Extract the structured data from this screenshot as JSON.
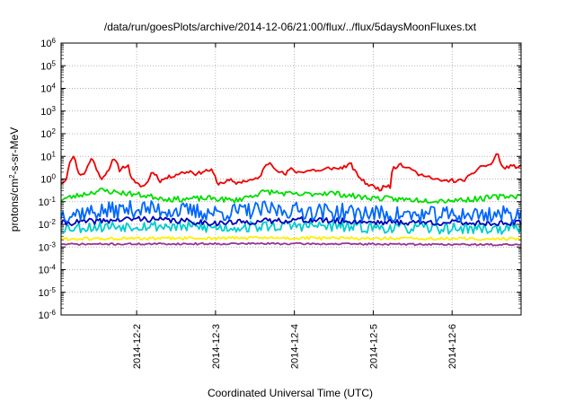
{
  "chart_data": {
    "type": "line",
    "title": "/data/run/goesPlots/archive/2014-12-06/21:00/flux/../flux/5daysMoonFluxes.txt",
    "xlabel": "Coordinated Universal Time (UTC)",
    "ylabel": "protons/cm2-s-sr-MeV",
    "ylabel_parts": {
      "pre": "protons/cm",
      "sup": "2",
      "post": "-s-sr-MeV"
    },
    "y_scale": "log",
    "ylim_exp": [
      -6,
      6
    ],
    "y_ticks": [
      {
        "base": "10",
        "exp": "-6"
      },
      {
        "base": "10",
        "exp": "-5"
      },
      {
        "base": "10",
        "exp": "-4"
      },
      {
        "base": "10",
        "exp": "-3"
      },
      {
        "base": "10",
        "exp": "-2"
      },
      {
        "base": "10",
        "exp": "-1"
      },
      {
        "base": "10",
        "exp": "0"
      },
      {
        "base": "10",
        "exp": "1"
      },
      {
        "base": "10",
        "exp": "2"
      },
      {
        "base": "10",
        "exp": "3"
      },
      {
        "base": "10",
        "exp": "4"
      },
      {
        "base": "10",
        "exp": "5"
      },
      {
        "base": "10",
        "exp": "6"
      }
    ],
    "x_domain": [
      "2014-12-01 01:00",
      "2014-12-06 21:00"
    ],
    "x_tick_labels": [
      "2014-12-2",
      "2014-12-3",
      "2014-12-4",
      "2014-12-5",
      "2014-12-6"
    ],
    "x_tick_days": [
      1,
      2,
      3,
      4,
      5
    ],
    "grid": true,
    "legend": "none",
    "series": [
      {
        "color": "#ee0000",
        "log_base": 0.0,
        "log_noise": 0.08,
        "seed": 11,
        "log_profile": [
          [
            0,
            -0.18
          ],
          [
            0.06,
            -0.05
          ],
          [
            0.1,
            0.55
          ],
          [
            0.14,
            1.0
          ],
          [
            0.18,
            0.9
          ],
          [
            0.22,
            0.2
          ],
          [
            0.3,
            0.25
          ],
          [
            0.38,
            0.9
          ],
          [
            0.42,
            0.75
          ],
          [
            0.46,
            0.35
          ],
          [
            0.5,
            0.0
          ],
          [
            0.58,
            0.3
          ],
          [
            0.62,
            0.55
          ],
          [
            0.66,
            0.85
          ],
          [
            0.7,
            0.75
          ],
          [
            0.74,
            0.4
          ],
          [
            0.82,
            0.6
          ],
          [
            0.86,
            0.55
          ],
          [
            0.88,
            0.15
          ],
          [
            0.94,
            -0.2
          ],
          [
            1.02,
            -0.3
          ],
          [
            1.06,
            -0.3
          ],
          [
            1.1,
            -0.1
          ],
          [
            1.14,
            0.25
          ],
          [
            1.18,
            0.3
          ],
          [
            1.22,
            0.1
          ],
          [
            1.26,
            -0.1
          ],
          [
            1.3,
            0.0
          ],
          [
            1.5,
            0.25
          ],
          [
            1.65,
            0.35
          ],
          [
            1.72,
            0.2
          ],
          [
            1.8,
            0.35
          ],
          [
            1.9,
            0.4
          ],
          [
            1.95,
            0.15
          ],
          [
            1.97,
            -0.2
          ],
          [
            2.05,
            -0.15
          ],
          [
            2.15,
            -0.05
          ],
          [
            2.2,
            -0.2
          ],
          [
            2.3,
            -0.1
          ],
          [
            2.4,
            -0.05
          ],
          [
            2.5,
            0.0
          ],
          [
            2.58,
            0.5
          ],
          [
            2.64,
            0.75
          ],
          [
            2.7,
            0.55
          ],
          [
            2.78,
            0.3
          ],
          [
            2.85,
            0.2
          ],
          [
            2.9,
            0.45
          ],
          [
            3.0,
            0.3
          ],
          [
            3.1,
            0.35
          ],
          [
            3.2,
            0.4
          ],
          [
            3.3,
            0.35
          ],
          [
            3.4,
            0.5
          ],
          [
            3.5,
            0.45
          ],
          [
            3.6,
            0.55
          ],
          [
            3.68,
            0.65
          ],
          [
            3.72,
            0.35
          ],
          [
            3.78,
            0.1
          ],
          [
            3.85,
            -0.15
          ],
          [
            3.9,
            -0.25
          ],
          [
            3.98,
            -0.35
          ],
          [
            4.04,
            -0.45
          ],
          [
            4.1,
            -0.35
          ],
          [
            4.15,
            -0.25
          ],
          [
            4.18,
            -0.35
          ],
          [
            4.2,
            0.55
          ],
          [
            4.25,
            0.5
          ],
          [
            4.3,
            0.75
          ],
          [
            4.36,
            0.45
          ],
          [
            4.42,
            0.55
          ],
          [
            4.48,
            0.3
          ],
          [
            4.56,
            0.15
          ],
          [
            4.64,
            0.2
          ],
          [
            4.7,
            0.0
          ],
          [
            4.78,
            -0.05
          ],
          [
            4.86,
            -0.1
          ],
          [
            4.94,
            -0.05
          ],
          [
            5.02,
            -0.1
          ],
          [
            5.1,
            -0.05
          ],
          [
            5.2,
            0.15
          ],
          [
            5.28,
            0.45
          ],
          [
            5.34,
            0.6
          ],
          [
            5.4,
            0.55
          ],
          [
            5.48,
            0.75
          ],
          [
            5.52,
            1.15
          ],
          [
            5.56,
            0.9
          ],
          [
            5.6,
            0.45
          ],
          [
            5.64,
            0.5
          ],
          [
            5.67,
            0.55
          ]
        ]
      },
      {
        "color": "#00dd00",
        "log_base": -0.85,
        "log_noise": 0.12,
        "seed": 23,
        "log_profile": [
          [
            0,
            -0.05
          ],
          [
            0.5,
            0.35
          ],
          [
            1.0,
            0.15
          ],
          [
            1.4,
            -0.05
          ],
          [
            1.9,
            0.0
          ],
          [
            2.2,
            -0.1
          ],
          [
            2.6,
            0.3
          ],
          [
            3.0,
            0.15
          ],
          [
            3.4,
            0.25
          ],
          [
            3.8,
            0.05
          ],
          [
            4.3,
            -0.05
          ],
          [
            4.8,
            -0.1
          ],
          [
            5.2,
            -0.05
          ],
          [
            5.67,
            0.1
          ]
        ]
      },
      {
        "color": "#0066ff",
        "log_base": -1.55,
        "log_noise": 0.38,
        "seed": 37,
        "log_profile": [
          [
            0,
            0.0
          ],
          [
            1.0,
            0.25
          ],
          [
            2.0,
            0.05
          ],
          [
            2.6,
            0.2
          ],
          [
            3.5,
            0.1
          ],
          [
            4.5,
            -0.05
          ],
          [
            5.67,
            0.0
          ]
        ]
      },
      {
        "color": "#0000bb",
        "log_base": -1.95,
        "log_noise": 0.13,
        "seed": 41,
        "log_profile": [
          [
            0,
            0.0
          ],
          [
            1.0,
            0.2
          ],
          [
            2.0,
            0.0
          ],
          [
            3.0,
            0.15
          ],
          [
            4.0,
            0.05
          ],
          [
            5.67,
            0.0
          ]
        ]
      },
      {
        "color": "#00cccc",
        "log_base": -2.15,
        "log_noise": 0.25,
        "seed": 53,
        "log_profile": [
          [
            0,
            0.0
          ],
          [
            1.0,
            0.1
          ],
          [
            2.0,
            0.0
          ],
          [
            3.0,
            0.1
          ],
          [
            4.0,
            0.0
          ],
          [
            5.67,
            -0.05
          ]
        ]
      },
      {
        "color": "#ffee00",
        "log_base": -2.65,
        "log_noise": 0.07,
        "seed": 61,
        "log_profile": [
          [
            0,
            0.0
          ],
          [
            2.5,
            0.05
          ],
          [
            5.67,
            0.0
          ]
        ]
      },
      {
        "color": "#993399",
        "log_base": -2.88,
        "log_noise": 0.04,
        "seed": 71,
        "log_profile": [
          [
            0,
            0.0
          ],
          [
            2.5,
            0.03
          ],
          [
            5.67,
            -0.02
          ]
        ]
      }
    ]
  }
}
